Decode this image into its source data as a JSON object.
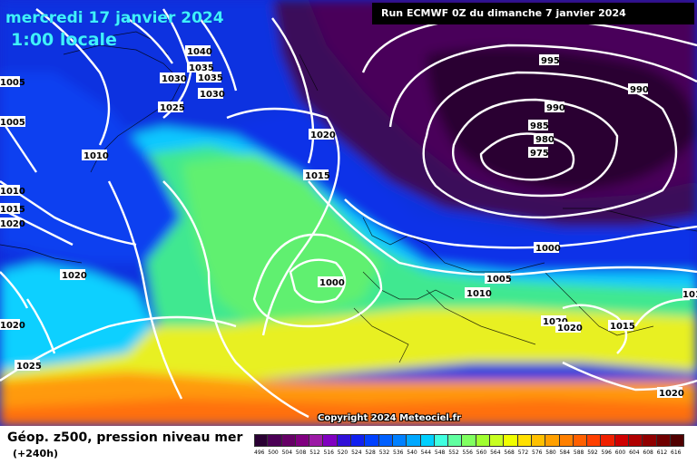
{
  "valid_time": {
    "date": "mercredi 17 janvier 2024",
    "hour": "1:00 locale"
  },
  "run_info": "Run ECMWF 0Z du dimanche 7 janvier 2024",
  "copyright": "Copyright 2024 Meteociel.fr",
  "footer": {
    "title": "Géop. z500, pression niveau mer",
    "subtitle": "(+240h)"
  },
  "color_scale": {
    "labels": [
      "496",
      "500",
      "504",
      "508",
      "512",
      "516",
      "520",
      "524",
      "528",
      "532",
      "536",
      "540",
      "544",
      "548",
      "552",
      "556",
      "560",
      "564",
      "568",
      "572",
      "576",
      "580",
      "584",
      "588",
      "592",
      "596",
      "600",
      "604",
      "608",
      "612",
      "616"
    ],
    "colors": [
      "#2a0033",
      "#4b0055",
      "#660066",
      "#800080",
      "#9c1aa6",
      "#8000c0",
      "#3010d8",
      "#1020f0",
      "#0040ff",
      "#0060ff",
      "#0080ff",
      "#00a8ff",
      "#00d0ff",
      "#40ffe0",
      "#60ffa0",
      "#80ff60",
      "#a0ff30",
      "#c8ff20",
      "#f0ff00",
      "#ffe000",
      "#ffc000",
      "#ffa000",
      "#ff8000",
      "#ff6000",
      "#ff4000",
      "#f02000",
      "#d00000",
      "#b00000",
      "#900000",
      "#700000",
      "#500000"
    ]
  },
  "isobars": [
    {
      "label": "995"
    },
    {
      "label": "990"
    },
    {
      "label": "990"
    },
    {
      "label": "985"
    },
    {
      "label": "980"
    },
    {
      "label": "975"
    },
    {
      "label": "1000"
    },
    {
      "label": "1000"
    },
    {
      "label": "1005"
    },
    {
      "label": "1010"
    },
    {
      "label": "1015"
    },
    {
      "label": "1015"
    },
    {
      "label": "1020"
    },
    {
      "label": "1020"
    },
    {
      "label": "1020"
    },
    {
      "label": "1020"
    },
    {
      "label": "1020"
    },
    {
      "label": "1020"
    },
    {
      "label": "1025"
    },
    {
      "label": "1030"
    },
    {
      "label": "1030"
    },
    {
      "label": "1035"
    },
    {
      "label": "1035"
    },
    {
      "label": "1040"
    },
    {
      "label": "1005"
    },
    {
      "label": "1005"
    },
    {
      "label": "1010"
    },
    {
      "label": "1010"
    },
    {
      "label": "1015"
    },
    {
      "label": "1020"
    },
    {
      "label": "1010"
    },
    {
      "label": "1025"
    }
  ]
}
